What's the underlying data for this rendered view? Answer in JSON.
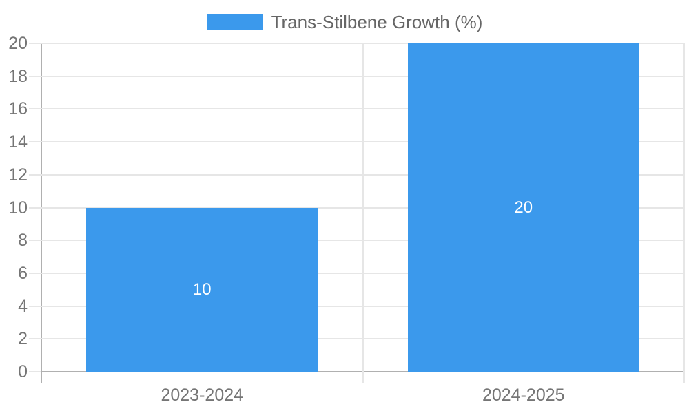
{
  "legend": {
    "items": [
      {
        "label": "Trans-Stilbene Growth (%)",
        "color": "#3b99ec"
      }
    ]
  },
  "chart_data": {
    "type": "bar",
    "categories": [
      "2023-2024",
      "2024-2025"
    ],
    "series": [
      {
        "name": "Trans-Stilbene Growth (%)",
        "values": [
          10,
          20
        ],
        "color": "#3b99ec"
      }
    ],
    "data_labels": [
      "10",
      "20"
    ],
    "y_ticks": [
      0,
      2,
      4,
      6,
      8,
      10,
      12,
      14,
      16,
      18,
      20
    ],
    "ylim": [
      0,
      20
    ],
    "grid": true,
    "legend_position": "top"
  },
  "colors": {
    "bar": "#3b99ec",
    "grid_line": "#e6e6e6",
    "axis_line": "#b0b0b0",
    "tick_label": "#757575",
    "legend_text": "#666666",
    "data_label": "#ffffff",
    "background": "#ffffff"
  }
}
